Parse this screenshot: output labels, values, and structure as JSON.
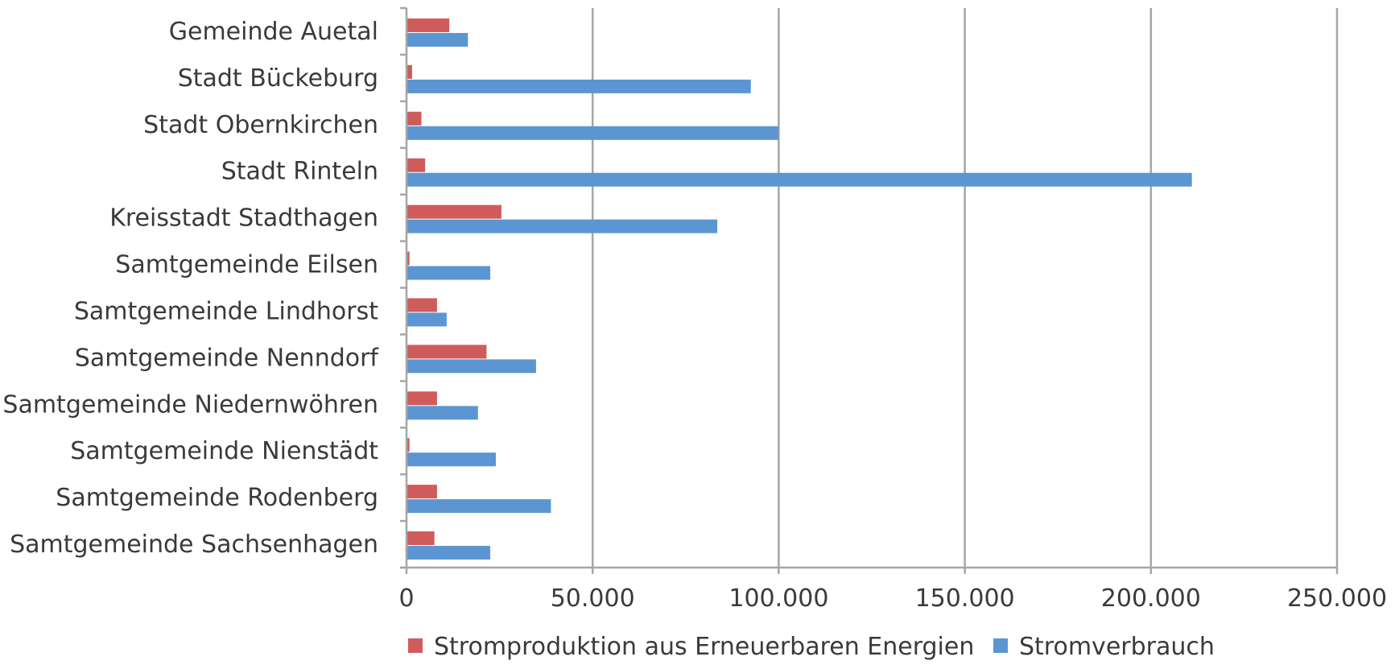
{
  "chart_data": {
    "type": "bar",
    "orientation": "horizontal",
    "title": "",
    "xlabel": "",
    "ylabel": "",
    "xlim": [
      0,
      250000
    ],
    "grid": true,
    "legend_position": "bottom",
    "tick_labels": [
      "0",
      "50.000",
      "100.000",
      "150.000",
      "200.000",
      "250.000"
    ],
    "tick_values": [
      0,
      50000,
      100000,
      150000,
      200000,
      250000
    ],
    "categories": [
      "Gemeinde Auetal",
      "Stadt Bückeburg",
      "Stadt Obernkirchen",
      "Stadt Rinteln",
      "Kreisstadt Stadthagen",
      "Samtgemeinde Eilsen",
      "Samtgemeinde Lindhorst",
      "Samtgemeinde Nenndorf",
      "Samtgemeinde Niedernwöhren",
      "Samtgemeinde Nienstädt",
      "Samtgemeinde Rodenberg",
      "Samtgemeinde Sachsenhagen"
    ],
    "series": [
      {
        "name": "Stromproduktion aus Erneuerbaren Energien",
        "color": "#d05b5b",
        "values": [
          11500,
          1500,
          4000,
          5000,
          25500,
          800,
          8200,
          21500,
          8200,
          800,
          8200,
          7500
        ]
      },
      {
        "name": "Stromverbrauch",
        "color": "#5b96d2",
        "values": [
          16500,
          92500,
          100000,
          211000,
          83500,
          22500,
          10800,
          34800,
          19200,
          24000,
          38800,
          22500
        ]
      }
    ]
  }
}
